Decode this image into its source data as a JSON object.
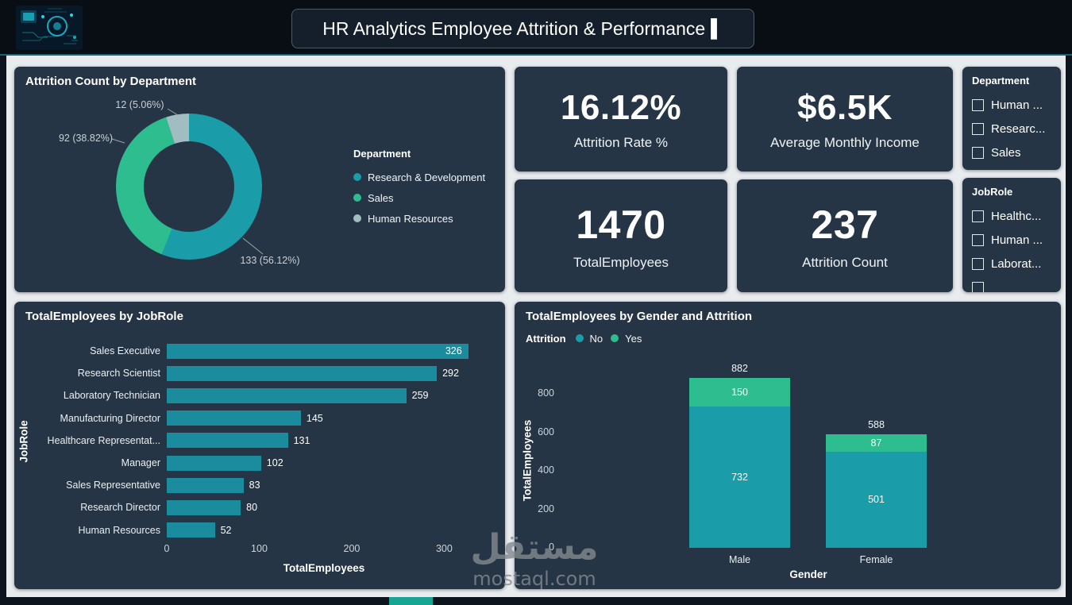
{
  "header": {
    "title": "HR Analytics Employee Attrition & Performance",
    "cursor": "▌"
  },
  "kpis": [
    {
      "value": "16.12%",
      "label": "Attrition Rate %"
    },
    {
      "value": "$6.5K",
      "label": "Average Monthly Income"
    },
    {
      "value": "1470",
      "label": "TotalEmployees"
    },
    {
      "value": "237",
      "label": "Attrition Count"
    }
  ],
  "slicers": [
    {
      "title": "Department",
      "options": [
        "Human ...",
        "Researc...",
        "Sales"
      ],
      "partial_extra_option": false
    },
    {
      "title": "JobRole",
      "options": [
        "Healthc...",
        "Human ...",
        "Laborat..."
      ],
      "partial_extra_option": true
    }
  ],
  "watermark": {
    "arabic": "مستقل",
    "site": "mostaql.com"
  },
  "colors": {
    "teal": "#1A9DA9",
    "green": "#2EBD8F",
    "light_slice": "#A2BDC1",
    "bar": "#1B8C9D",
    "card_bg": "#263545",
    "canvas_bg": "#E9ECEF",
    "frame_bg": "#0D141D",
    "page_tab": "#18A492"
  },
  "chart_data": [
    {
      "id": "attrition-by-department",
      "type": "pie",
      "donut": true,
      "title": "Attrition Count by Department",
      "legend_title": "Department",
      "legend_position": "right",
      "categories": [
        "Research & Development",
        "Sales",
        "Human Resources"
      ],
      "values": [
        133,
        92,
        12
      ],
      "labels": [
        "133 (56.12%)",
        "92 (38.82%)",
        "12 (5.06%)"
      ],
      "colors": [
        "#1A9DA9",
        "#2EBD8F",
        "#A2BDC1"
      ]
    },
    {
      "id": "employees-by-jobrole",
      "type": "bar",
      "orientation": "horizontal",
      "title": "TotalEmployees by JobRole",
      "categories": [
        "Sales Executive",
        "Research Scientist",
        "Laboratory Technician",
        "Manufacturing Director",
        "Healthcare Representat...",
        "Manager",
        "Sales Representative",
        "Research Director",
        "Human Resources"
      ],
      "values": [
        326,
        292,
        259,
        145,
        131,
        102,
        83,
        80,
        52
      ],
      "xlabel": "TotalEmployees",
      "ylabel": "JobRole",
      "x_ticks": [
        0,
        100,
        200,
        300
      ],
      "xlim": [
        0,
        340
      ],
      "grid": false,
      "bar_color": "#1B8C9D"
    },
    {
      "id": "employees-by-gender-attrition",
      "type": "bar",
      "subtype": "stacked-column",
      "title": "TotalEmployees by Gender and Attrition",
      "legend_title": "Attrition",
      "legend_position": "top-left",
      "categories": [
        "Male",
        "Female"
      ],
      "series": [
        {
          "name": "No",
          "color": "#1A9DA9",
          "values": [
            732,
            501
          ]
        },
        {
          "name": "Yes",
          "color": "#2EBD8F",
          "values": [
            150,
            87
          ]
        }
      ],
      "totals": [
        882,
        588
      ],
      "xlabel": "Gender",
      "ylabel": "TotalEmployees",
      "y_ticks": [
        0,
        200,
        400,
        600,
        800
      ],
      "ylim": [
        0,
        900
      ],
      "grid": false
    }
  ]
}
